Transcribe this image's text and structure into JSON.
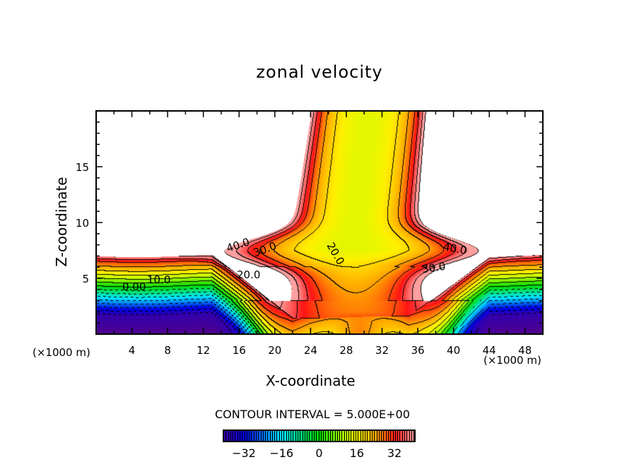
{
  "title": "zonal velocity",
  "chart_data": {
    "type": "contour",
    "title": "zonal velocity",
    "xlabel": "X-coordinate",
    "ylabel": "Z-coordinate",
    "x_unit": "(×1000 m)",
    "y_unit": "(×1000 m)",
    "xlim": [
      0,
      50
    ],
    "ylim": [
      0,
      20
    ],
    "x_ticks": [
      4,
      8,
      12,
      16,
      20,
      24,
      28,
      32,
      36,
      40,
      44,
      48
    ],
    "y_ticks": [
      5,
      10,
      15
    ],
    "contour_interval_label": "CONTOUR INTERVAL = 5.000E+00",
    "contour_interval": 5,
    "negative_contours": "dashed",
    "contour_labels": [
      "40.0",
      "30.0",
      "20.0",
      "10.0",
      "0.00",
      "20.0",
      "40.0",
      "30.0"
    ],
    "colorbar": {
      "range": [
        -41,
        41
      ],
      "ticks": [
        "-32",
        "-16",
        "0",
        "16",
        "32"
      ]
    },
    "features": {
      "jet_center_x": 29,
      "jet_core_value": 15,
      "lower_layer_levels_by_height": {
        "z": [
          0,
          1.8,
          4.3,
          5,
          5.7,
          6.5,
          7
        ],
        "u": [
          -45,
          -40,
          0,
          10,
          20,
          30,
          40
        ]
      }
    }
  }
}
